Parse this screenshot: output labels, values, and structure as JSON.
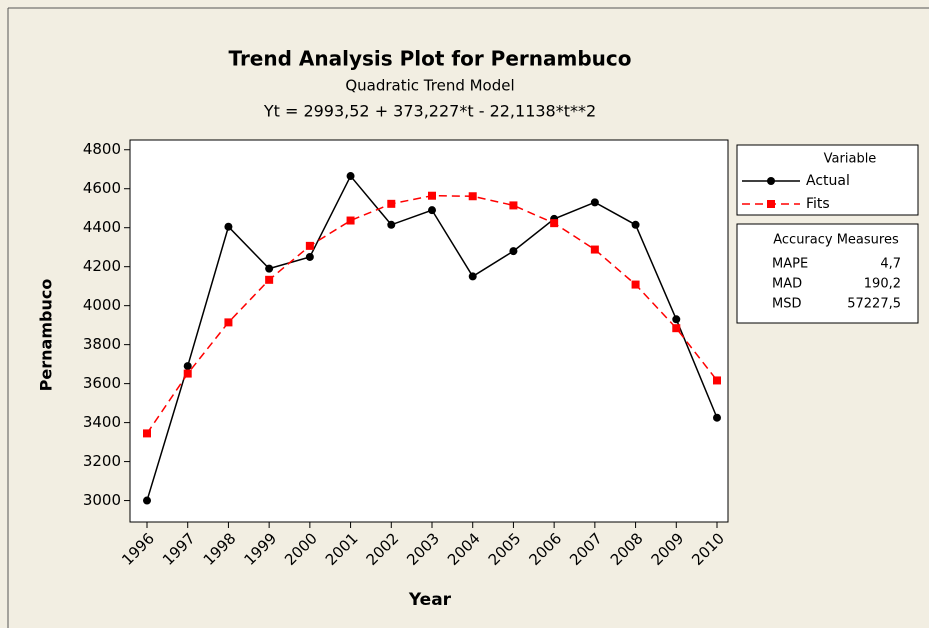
{
  "chart_data": {
    "type": "line",
    "title": "Trend Analysis Plot for Pernambuco",
    "subtitle": "Quadratic Trend Model",
    "equation": "Yt = 2993,52 + 373,227*t - 22,1138*t**2",
    "x_label": "Year",
    "y_label": "Pernambuco",
    "categories": [
      "1996",
      "1997",
      "1998",
      "1999",
      "2000",
      "2001",
      "2002",
      "2003",
      "2004",
      "2005",
      "2006",
      "2007",
      "2008",
      "2009",
      "2010"
    ],
    "series": [
      {
        "name": "Actual",
        "color": "#000000",
        "marker": "circle",
        "dashed": false,
        "values": [
          3000,
          3690,
          4405,
          4190,
          4250,
          4665,
          4415,
          4490,
          4150,
          4280,
          4445,
          4530,
          4415,
          3930,
          3425
        ]
      },
      {
        "name": "Fits",
        "color": "#ff0000",
        "marker": "square",
        "dashed": true,
        "values": [
          3344.6,
          3651.5,
          3914.2,
          4132.6,
          4306.8,
          4436.8,
          4522.5,
          4564.1,
          4561.4,
          4514.4,
          4423.3,
          4287.9,
          4108.2,
          3884.4,
          3616.3
        ]
      }
    ],
    "ylim": [
      2890,
      4850
    ],
    "yticks": [
      3000,
      3200,
      3400,
      3600,
      3800,
      4000,
      4200,
      4400,
      4600,
      4800
    ],
    "legend_title": "Variable",
    "accuracy": {
      "title": "Accuracy Measures",
      "rows": [
        [
          "MAPE",
          "4,7"
        ],
        [
          "MAD",
          "190,2"
        ],
        [
          "MSD",
          "57227,5"
        ]
      ]
    }
  }
}
